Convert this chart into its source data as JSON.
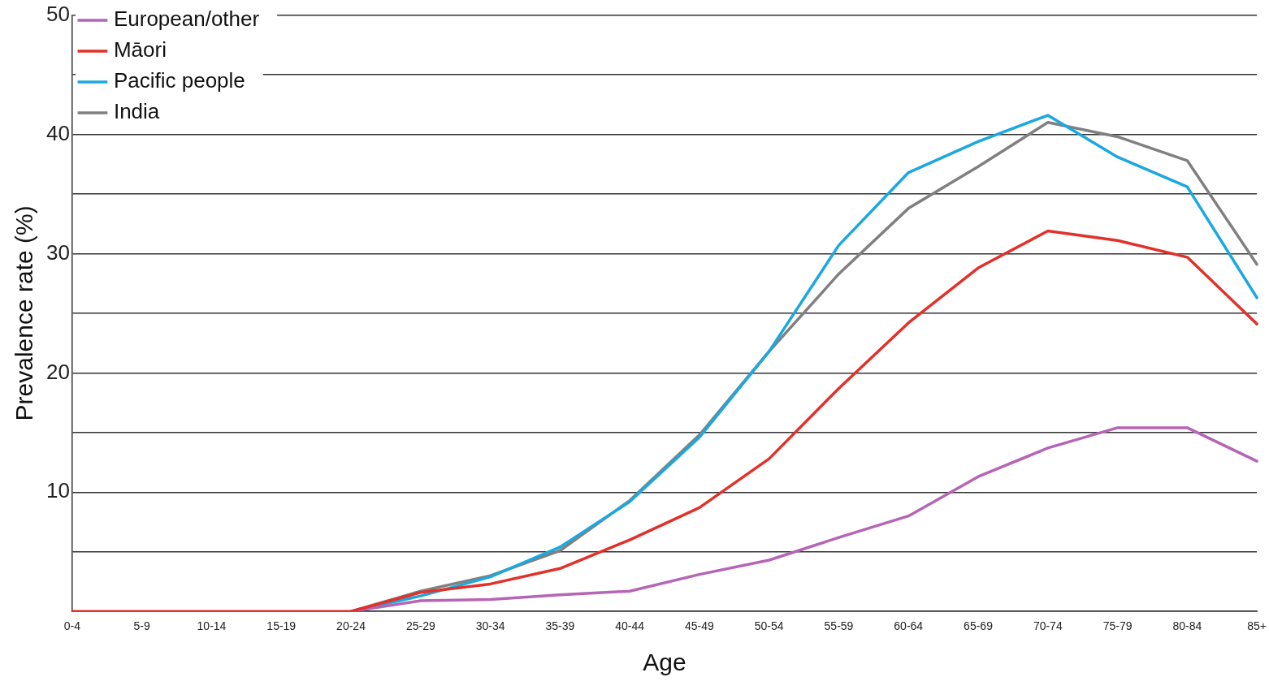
{
  "chart_data": {
    "type": "line",
    "xlabel": "Age",
    "ylabel": "Prevalence rate (%)",
    "categories": [
      "0-4",
      "5-9",
      "10-14",
      "15-19",
      "20-24",
      "25-29",
      "30-34",
      "35-39",
      "40-44",
      "45-49",
      "50-54",
      "55-59",
      "60-64",
      "65-69",
      "70-74",
      "75-79",
      "80-84",
      "85+"
    ],
    "series": [
      {
        "name": "European/other",
        "color": "#b565b5",
        "values": [
          null,
          null,
          null,
          null,
          0,
          0.9,
          1.0,
          1.4,
          1.7,
          3.1,
          4.3,
          6.2,
          8.0,
          11.3,
          13.7,
          15.4,
          15.4,
          12.6
        ]
      },
      {
        "name": "Māori",
        "color": "#e2302a",
        "values": [
          0,
          0,
          0,
          0,
          0,
          1.6,
          2.3,
          3.6,
          6.0,
          8.7,
          12.8,
          18.7,
          24.2,
          28.8,
          31.9,
          31.1,
          29.7,
          24.1
        ]
      },
      {
        "name": "Pacific people",
        "color": "#1ba7e0",
        "values": [
          null,
          null,
          null,
          null,
          0,
          1.3,
          2.9,
          5.4,
          9.2,
          14.6,
          21.8,
          30.7,
          36.8,
          39.4,
          41.6,
          38.1,
          35.6,
          26.3
        ]
      },
      {
        "name": "India",
        "color": "#808080",
        "values": [
          null,
          null,
          null,
          null,
          0,
          1.7,
          3.0,
          5.1,
          9.3,
          14.8,
          21.8,
          28.3,
          33.8,
          37.3,
          41.0,
          39.8,
          37.8,
          29.1
        ]
      }
    ],
    "ylim": [
      0,
      50
    ],
    "yticks": [
      {
        "value": 0,
        "label": null
      },
      {
        "value": 5,
        "label": null
      },
      10,
      {
        "value": 15,
        "label": null
      },
      20,
      {
        "value": 25,
        "label": null
      },
      30,
      {
        "value": 35,
        "label": null
      },
      40,
      {
        "value": 45,
        "label": null
      },
      50
    ],
    "grid": "y",
    "legend": "top left",
    "marker": "none",
    "line_style": "solid"
  }
}
